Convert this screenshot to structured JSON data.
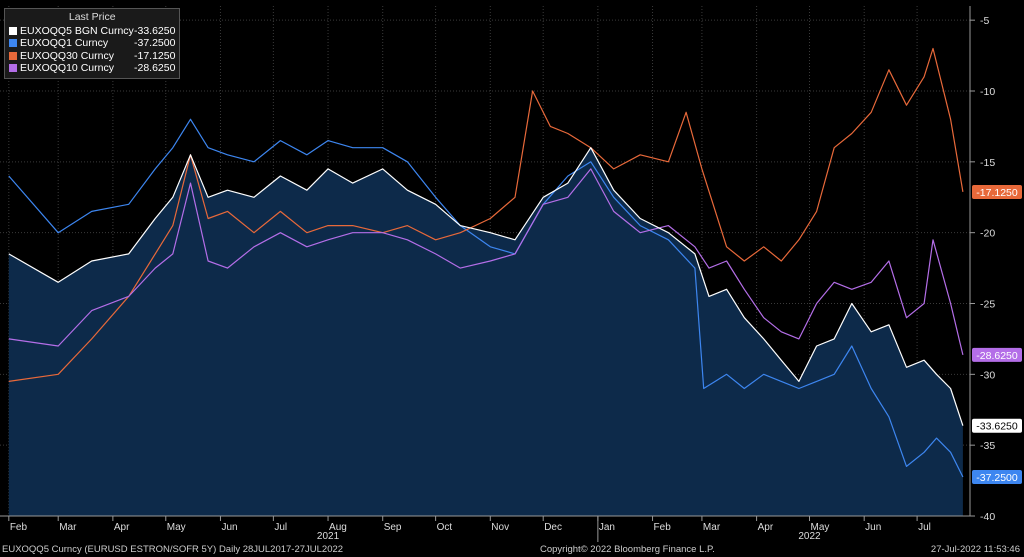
{
  "chart_data": {
    "type": "line",
    "legend_title": "Last Price",
    "legend_position": "top-left",
    "series": [
      {
        "name": "EUXOQQ5 BGN Curncy",
        "last": "-33.6250",
        "color": "#ffffff",
        "points": [
          [
            "2021-02-01",
            -21.5
          ],
          [
            "2021-03-01",
            -23.5
          ],
          [
            "2021-03-20",
            -22.0
          ],
          [
            "2021-04-10",
            -21.5
          ],
          [
            "2021-04-25",
            -19.0
          ],
          [
            "2021-05-05",
            -17.5
          ],
          [
            "2021-05-15",
            -14.5
          ],
          [
            "2021-05-25",
            -17.5
          ],
          [
            "2021-06-05",
            -17.0
          ],
          [
            "2021-06-20",
            -17.5
          ],
          [
            "2021-07-05",
            -16.0
          ],
          [
            "2021-07-20",
            -17.0
          ],
          [
            "2021-08-01",
            -15.5
          ],
          [
            "2021-08-15",
            -16.5
          ],
          [
            "2021-09-01",
            -15.5
          ],
          [
            "2021-09-15",
            -17.0
          ],
          [
            "2021-10-01",
            -18.0
          ],
          [
            "2021-10-15",
            -19.5
          ],
          [
            "2021-11-01",
            -20.0
          ],
          [
            "2021-11-15",
            -20.5
          ],
          [
            "2021-12-01",
            -17.5
          ],
          [
            "2021-12-15",
            -16.5
          ],
          [
            "2021-12-28",
            -14.0
          ],
          [
            "2022-01-10",
            -17.0
          ],
          [
            "2022-01-25",
            -19.0
          ],
          [
            "2022-02-10",
            -20.0
          ],
          [
            "2022-02-25",
            -21.5
          ],
          [
            "2022-03-05",
            -24.5
          ],
          [
            "2022-03-15",
            -24.0
          ],
          [
            "2022-03-25",
            -26.0
          ],
          [
            "2022-04-05",
            -27.5
          ],
          [
            "2022-04-15",
            -29.0
          ],
          [
            "2022-04-25",
            -30.5
          ],
          [
            "2022-05-05",
            -28.0
          ],
          [
            "2022-05-15",
            -27.5
          ],
          [
            "2022-05-25",
            -25.0
          ],
          [
            "2022-06-05",
            -27.0
          ],
          [
            "2022-06-15",
            -26.5
          ],
          [
            "2022-06-25",
            -29.5
          ],
          [
            "2022-07-05",
            -29.0
          ],
          [
            "2022-07-12",
            -30.0
          ],
          [
            "2022-07-20",
            -31.0
          ],
          [
            "2022-07-27",
            -33.625
          ]
        ]
      },
      {
        "name": "EUXOQQ1 Curncy",
        "last": "-37.2500",
        "color": "#3d86f0",
        "points": [
          [
            "2021-02-01",
            -16.0
          ],
          [
            "2021-03-01",
            -20.0
          ],
          [
            "2021-03-20",
            -18.5
          ],
          [
            "2021-04-10",
            -18.0
          ],
          [
            "2021-04-25",
            -15.5
          ],
          [
            "2021-05-05",
            -14.0
          ],
          [
            "2021-05-15",
            -12.0
          ],
          [
            "2021-05-25",
            -14.0
          ],
          [
            "2021-06-05",
            -14.5
          ],
          [
            "2021-06-20",
            -15.0
          ],
          [
            "2021-07-05",
            -13.5
          ],
          [
            "2021-07-20",
            -14.5
          ],
          [
            "2021-08-01",
            -13.5
          ],
          [
            "2021-08-15",
            -14.0
          ],
          [
            "2021-09-01",
            -14.0
          ],
          [
            "2021-09-15",
            -15.0
          ],
          [
            "2021-10-01",
            -17.5
          ],
          [
            "2021-10-15",
            -19.5
          ],
          [
            "2021-11-01",
            -21.0
          ],
          [
            "2021-11-15",
            -21.5
          ],
          [
            "2021-12-01",
            -18.0
          ],
          [
            "2021-12-15",
            -16.0
          ],
          [
            "2021-12-28",
            -15.0
          ],
          [
            "2022-01-10",
            -17.5
          ],
          [
            "2022-01-25",
            -19.5
          ],
          [
            "2022-02-10",
            -20.5
          ],
          [
            "2022-02-25",
            -22.5
          ],
          [
            "2022-03-02",
            -31.0
          ],
          [
            "2022-03-15",
            -30.0
          ],
          [
            "2022-03-25",
            -31.0
          ],
          [
            "2022-04-05",
            -30.0
          ],
          [
            "2022-04-15",
            -30.5
          ],
          [
            "2022-04-25",
            -31.0
          ],
          [
            "2022-05-05",
            -30.5
          ],
          [
            "2022-05-15",
            -30.0
          ],
          [
            "2022-05-25",
            -28.0
          ],
          [
            "2022-06-05",
            -31.0
          ],
          [
            "2022-06-15",
            -33.0
          ],
          [
            "2022-06-25",
            -36.5
          ],
          [
            "2022-07-05",
            -35.5
          ],
          [
            "2022-07-12",
            -34.5
          ],
          [
            "2022-07-20",
            -35.5
          ],
          [
            "2022-07-27",
            -37.25
          ]
        ]
      },
      {
        "name": "EUXOQQ30 Curncy",
        "last": "-17.1250",
        "color": "#e8693a",
        "points": [
          [
            "2021-02-01",
            -30.5
          ],
          [
            "2021-03-01",
            -30.0
          ],
          [
            "2021-03-20",
            -27.5
          ],
          [
            "2021-04-10",
            -24.5
          ],
          [
            "2021-04-25",
            -21.5
          ],
          [
            "2021-05-05",
            -19.5
          ],
          [
            "2021-05-15",
            -14.5
          ],
          [
            "2021-05-25",
            -19.0
          ],
          [
            "2021-06-05",
            -18.5
          ],
          [
            "2021-06-20",
            -20.0
          ],
          [
            "2021-07-05",
            -18.5
          ],
          [
            "2021-07-20",
            -20.0
          ],
          [
            "2021-08-01",
            -19.5
          ],
          [
            "2021-08-15",
            -19.5
          ],
          [
            "2021-09-01",
            -20.0
          ],
          [
            "2021-09-15",
            -19.5
          ],
          [
            "2021-10-01",
            -20.5
          ],
          [
            "2021-10-15",
            -20.0
          ],
          [
            "2021-11-01",
            -19.0
          ],
          [
            "2021-11-15",
            -17.5
          ],
          [
            "2021-11-25",
            -10.0
          ],
          [
            "2021-12-05",
            -12.5
          ],
          [
            "2021-12-15",
            -13.0
          ],
          [
            "2021-12-28",
            -14.0
          ],
          [
            "2022-01-10",
            -15.5
          ],
          [
            "2022-01-25",
            -14.5
          ],
          [
            "2022-02-10",
            -15.0
          ],
          [
            "2022-02-20",
            -11.5
          ],
          [
            "2022-03-01",
            -15.5
          ],
          [
            "2022-03-15",
            -21.0
          ],
          [
            "2022-03-25",
            -22.0
          ],
          [
            "2022-04-05",
            -21.0
          ],
          [
            "2022-04-15",
            -22.0
          ],
          [
            "2022-04-25",
            -20.5
          ],
          [
            "2022-05-05",
            -18.5
          ],
          [
            "2022-05-15",
            -14.0
          ],
          [
            "2022-05-25",
            -13.0
          ],
          [
            "2022-06-05",
            -11.5
          ],
          [
            "2022-06-15",
            -8.5
          ],
          [
            "2022-06-25",
            -11.0
          ],
          [
            "2022-07-05",
            -9.0
          ],
          [
            "2022-07-10",
            -7.0
          ],
          [
            "2022-07-20",
            -12.0
          ],
          [
            "2022-07-27",
            -17.125
          ]
        ]
      },
      {
        "name": "EUXOQQ10 Curncy",
        "last": "-28.6250",
        "color": "#b46ee8",
        "points": [
          [
            "2021-02-01",
            -27.5
          ],
          [
            "2021-03-01",
            -28.0
          ],
          [
            "2021-03-20",
            -25.5
          ],
          [
            "2021-04-10",
            -24.5
          ],
          [
            "2021-04-25",
            -22.5
          ],
          [
            "2021-05-05",
            -21.5
          ],
          [
            "2021-05-15",
            -16.5
          ],
          [
            "2021-05-25",
            -22.0
          ],
          [
            "2021-06-05",
            -22.5
          ],
          [
            "2021-06-20",
            -21.0
          ],
          [
            "2021-07-05",
            -20.0
          ],
          [
            "2021-07-20",
            -21.0
          ],
          [
            "2021-08-01",
            -20.5
          ],
          [
            "2021-08-15",
            -20.0
          ],
          [
            "2021-09-01",
            -20.0
          ],
          [
            "2021-09-15",
            -20.5
          ],
          [
            "2021-10-01",
            -21.5
          ],
          [
            "2021-10-15",
            -22.5
          ],
          [
            "2021-11-01",
            -22.0
          ],
          [
            "2021-11-15",
            -21.5
          ],
          [
            "2021-12-01",
            -18.0
          ],
          [
            "2021-12-15",
            -17.5
          ],
          [
            "2021-12-28",
            -15.5
          ],
          [
            "2022-01-10",
            -18.5
          ],
          [
            "2022-01-25",
            -20.0
          ],
          [
            "2022-02-10",
            -19.5
          ],
          [
            "2022-02-25",
            -21.0
          ],
          [
            "2022-03-05",
            -22.5
          ],
          [
            "2022-03-15",
            -22.0
          ],
          [
            "2022-03-25",
            -24.0
          ],
          [
            "2022-04-05",
            -26.0
          ],
          [
            "2022-04-15",
            -27.0
          ],
          [
            "2022-04-25",
            -27.5
          ],
          [
            "2022-05-05",
            -25.0
          ],
          [
            "2022-05-15",
            -23.5
          ],
          [
            "2022-05-25",
            -24.0
          ],
          [
            "2022-06-05",
            -23.5
          ],
          [
            "2022-06-15",
            -22.0
          ],
          [
            "2022-06-25",
            -26.0
          ],
          [
            "2022-07-05",
            -25.0
          ],
          [
            "2022-07-10",
            -20.5
          ],
          [
            "2022-07-20",
            -25.0
          ],
          [
            "2022-07-27",
            -28.625
          ]
        ]
      }
    ],
    "fill_series": "EUXOQQ5 BGN Curncy",
    "fill_color": "#0d2a4a",
    "x_range": [
      "2021-01-27",
      "2022-07-31"
    ],
    "y_range": [
      -40,
      -4
    ],
    "y_ticks": [
      -5,
      -10,
      -15,
      -20,
      -25,
      -30,
      -35,
      -40
    ],
    "y_tick_labels": [
      "-5",
      "-10",
      "-15",
      "-20",
      "-25",
      "-30",
      "-35",
      "-40"
    ],
    "x_ticks": [
      {
        "date": "2021-02-01",
        "label": "Feb"
      },
      {
        "date": "2021-03-01",
        "label": "Mar"
      },
      {
        "date": "2021-04-01",
        "label": "Apr"
      },
      {
        "date": "2021-05-01",
        "label": "May"
      },
      {
        "date": "2021-06-01",
        "label": "Jun"
      },
      {
        "date": "2021-07-01",
        "label": "Jul"
      },
      {
        "date": "2021-08-01",
        "label": "Aug"
      },
      {
        "date": "2021-09-01",
        "label": "Sep"
      },
      {
        "date": "2021-10-01",
        "label": "Oct"
      },
      {
        "date": "2021-11-01",
        "label": "Nov"
      },
      {
        "date": "2021-12-01",
        "label": "Dec"
      },
      {
        "date": "2022-01-01",
        "label": "Jan"
      },
      {
        "date": "2022-02-01",
        "label": "Feb"
      },
      {
        "date": "2022-03-01",
        "label": "Mar"
      },
      {
        "date": "2022-04-01",
        "label": "Apr"
      },
      {
        "date": "2022-05-01",
        "label": "May"
      },
      {
        "date": "2022-06-01",
        "label": "Jun"
      },
      {
        "date": "2022-07-01",
        "label": "Jul"
      }
    ],
    "year_labels": [
      {
        "date": "2021-08-01",
        "label": "2021"
      },
      {
        "date": "2022-05-01",
        "label": "2022"
      }
    ],
    "year_separator": "2022-01-01",
    "grid": true
  },
  "footer": {
    "left": "EUXOQQ5 Curncy (EURUSD ESTRON/SOFR 5Y)  Daily 28JUL2017-27JUL2022",
    "center": "Copyright© 2022 Bloomberg Finance L.P.",
    "right": "27-Jul-2022 11:53:46"
  }
}
